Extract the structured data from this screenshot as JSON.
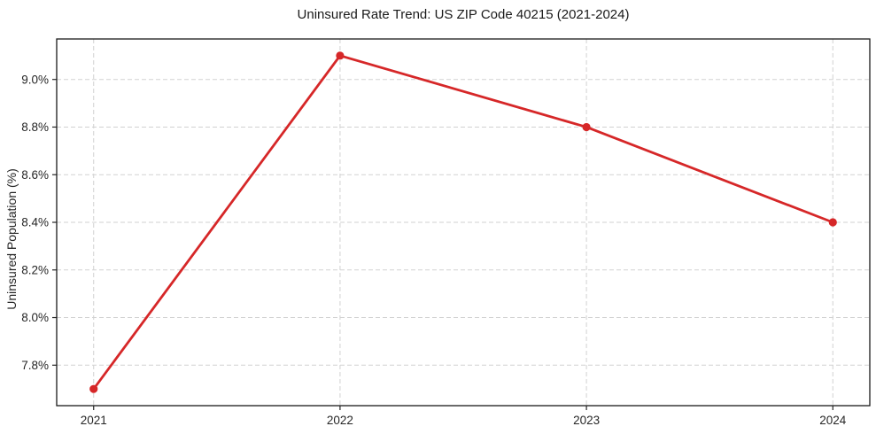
{
  "chart_data": {
    "type": "line",
    "title": "Uninsured Rate Trend: US ZIP Code 40215 (2021-2024)",
    "xlabel": "",
    "ylabel": "Uninsured Population (%)",
    "x": [
      2021,
      2022,
      2023,
      2024
    ],
    "values": [
      7.7,
      9.1,
      8.8,
      8.4
    ],
    "xticks": [
      2021,
      2022,
      2023,
      2024
    ],
    "xtick_labels": [
      "2021",
      "2022",
      "2023",
      "2024"
    ],
    "yticks": [
      7.8,
      8.0,
      8.2,
      8.4,
      8.6,
      8.8,
      9.0
    ],
    "ytick_labels": [
      "7.8%",
      "8.0%",
      "8.2%",
      "8.4%",
      "8.6%",
      "8.8%",
      "9.0%"
    ],
    "xlim": [
      2020.85,
      2024.15
    ],
    "ylim": [
      7.63,
      9.17
    ],
    "grid": true,
    "grid_style": "dashed",
    "legend": "none",
    "colors": {
      "line": "#d62728",
      "marker": "#d62728",
      "grid": "#d2d2d2",
      "spine": "#1a1a1a",
      "tick": "#262626",
      "background": "#ffffff"
    }
  }
}
